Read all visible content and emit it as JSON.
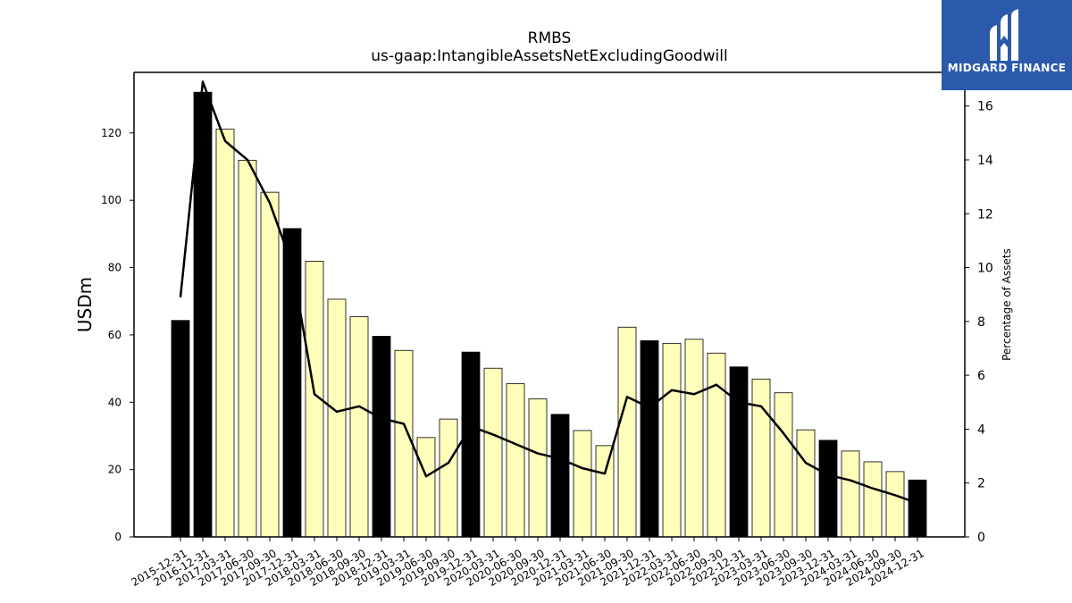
{
  "chart_data": {
    "type": "bar",
    "title": "RMBS",
    "subtitle": "us-gaap:IntangibleAssetsNetExcludingGoodwill",
    "ylabel_left": "USDm",
    "ylabel_right": "Percentage of Assets",
    "categories": [
      "2015-12-31",
      "2016-12-31",
      "2017-03-31",
      "2017-06-30",
      "2017-09-30",
      "2017-12-31",
      "2018-03-31",
      "2018-06-30",
      "2018-09-30",
      "2018-12-31",
      "2019-03-31",
      "2019-06-30",
      "2019-09-30",
      "2019-12-31",
      "2020-03-31",
      "2020-06-30",
      "2020-09-30",
      "2020-12-31",
      "2021-03-31",
      "2021-06-30",
      "2021-09-30",
      "2021-12-31",
      "2022-03-31",
      "2022-06-30",
      "2022-09-30",
      "2022-12-31",
      "2023-03-31",
      "2023-06-30",
      "2023-09-30",
      "2023-12-31",
      "2024-03-31",
      "2024-06-30",
      "2024-09-30",
      "2024-12-31"
    ],
    "series": [
      {
        "type": "bar",
        "axis": "left",
        "values": [
          64.3,
          132.1,
          121.1,
          111.9,
          102.4,
          91.6,
          81.9,
          70.6,
          65.4,
          59.6,
          55.4,
          29.5,
          35.0,
          54.9,
          50.1,
          45.5,
          41.0,
          36.4,
          31.6,
          27.1,
          62.3,
          58.3,
          57.5,
          58.7,
          54.6,
          50.5,
          46.9,
          42.8,
          31.8,
          28.7,
          25.5,
          22.3,
          19.4,
          16.9
        ],
        "year_end_color": "#000000",
        "quarter_color": "#ffffbb"
      },
      {
        "type": "line",
        "axis": "right",
        "values": [
          8.9,
          16.9,
          14.7,
          14.0,
          12.4,
          10.1,
          5.3,
          4.65,
          4.85,
          4.4,
          4.2,
          2.25,
          2.75,
          4.1,
          3.8,
          3.45,
          3.1,
          2.9,
          2.55,
          2.35,
          5.2,
          4.8,
          5.45,
          5.3,
          5.65,
          5.0,
          4.85,
          3.85,
          2.75,
          2.3,
          2.1,
          1.8,
          1.55,
          1.25
        ],
        "color": "#000000"
      }
    ],
    "y_left": {
      "range": [
        0,
        138
      ],
      "ticks": [
        0,
        20,
        40,
        60,
        80,
        100,
        120
      ]
    },
    "y_right": {
      "range": [
        0,
        17.25
      ],
      "ticks": [
        0,
        2,
        4,
        6,
        8,
        10,
        12,
        14,
        16
      ]
    },
    "grid": false,
    "legend": "none"
  },
  "logo": {
    "text": "MIDGARD FINANCE",
    "icon": "midgard-logo-icon",
    "color": "#2b5aab"
  }
}
